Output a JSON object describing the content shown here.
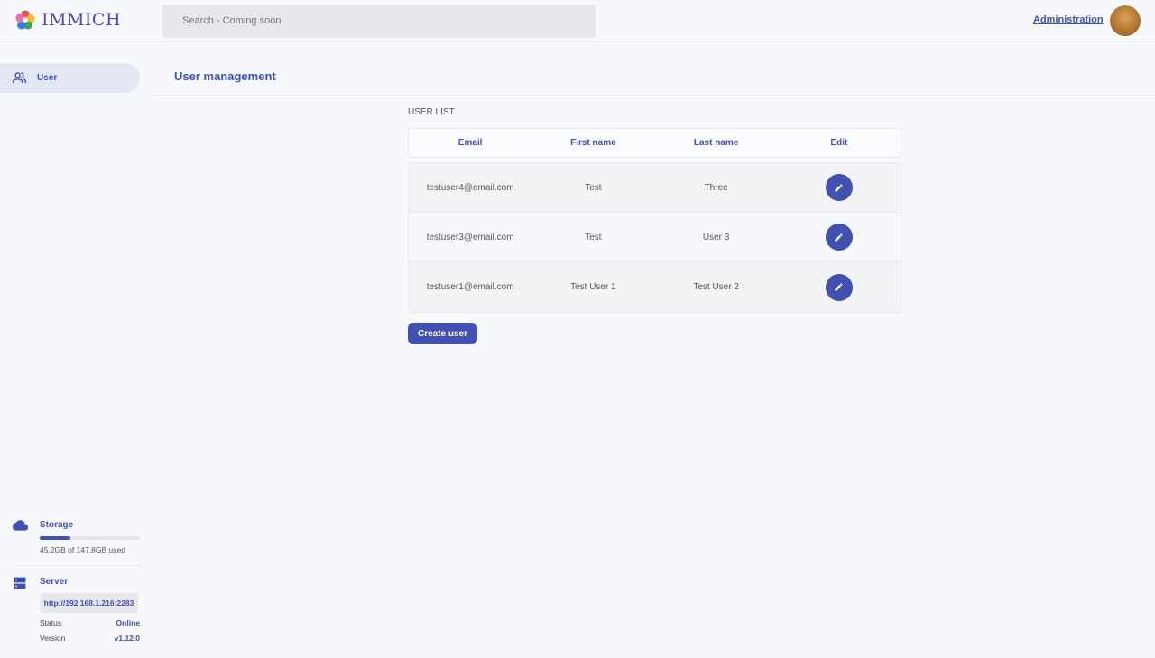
{
  "header": {
    "app_name": "IMMICH",
    "search_placeholder": "Search - Coming soon",
    "admin_link": "Administration"
  },
  "sidebar": {
    "items": [
      {
        "label": "User",
        "icon": "users-icon"
      }
    ],
    "storage": {
      "title": "Storage",
      "usage_text": "45.2GB of 147.8GB used",
      "used_fraction": 0.306
    },
    "server": {
      "title": "Server",
      "url": "http://192.168.1.216:2283",
      "status_label": "Status",
      "status_value": "Online",
      "version_label": "Version",
      "version_value": "v1.12.0"
    }
  },
  "main": {
    "title": "User management",
    "section_label": "USER LIST",
    "columns": [
      "Email",
      "First name",
      "Last name",
      "Edit"
    ],
    "rows": [
      {
        "email": "testuser4@email.com",
        "first": "Test",
        "last": "Three"
      },
      {
        "email": "testuser3@email.com",
        "first": "Test",
        "last": "User 3"
      },
      {
        "email": "testuser1@email.com",
        "first": "Test User 1",
        "last": "Test User 2"
      }
    ],
    "create_button": "Create user"
  },
  "colors": {
    "accent": "#4250af",
    "background": "#f6f8fc"
  }
}
